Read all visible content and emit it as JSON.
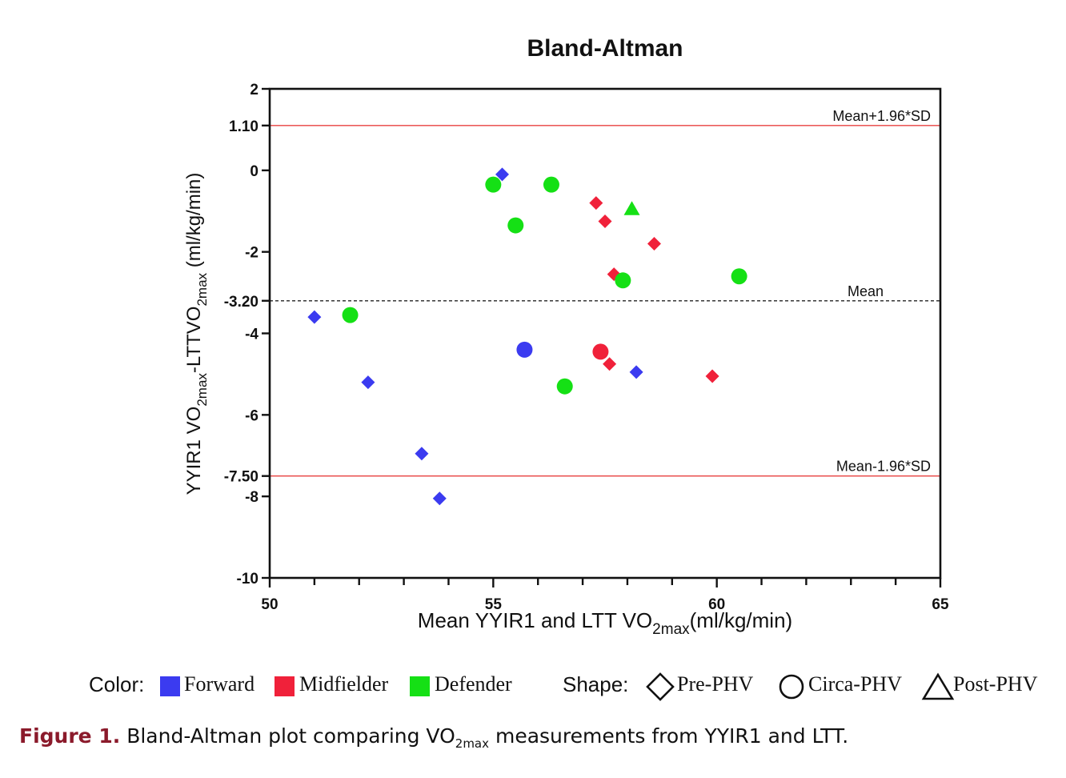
{
  "chart_data": {
    "type": "scatter",
    "title": "Bland-Altman",
    "xlabel": {
      "pre": "Mean YYIR1 and LTT VO",
      "sub": "2max",
      "post": "(ml/kg/min)"
    },
    "ylabel": {
      "a": "YYIR1 VO",
      "sub1": "2max",
      "b": "-LTTVO",
      "sub2": "2max",
      "c": " (ml/kg/min)"
    },
    "xlim": [
      50,
      65
    ],
    "ylim": [
      -10,
      2
    ],
    "x_ticks": [
      50,
      55,
      60,
      65
    ],
    "y_ticks": [
      {
        "value": 2,
        "label": "2"
      },
      {
        "value": 1.1,
        "label": "1.10"
      },
      {
        "value": 0,
        "label": "0"
      },
      {
        "value": -2,
        "label": "-2"
      },
      {
        "value": -3.2,
        "label": "-3.20"
      },
      {
        "value": -4,
        "label": "-4"
      },
      {
        "value": -6,
        "label": "-6"
      },
      {
        "value": -7.5,
        "label": "-7.50"
      },
      {
        "value": -8,
        "label": "-8"
      },
      {
        "value": -10,
        "label": "-10"
      }
    ],
    "reference_lines": [
      {
        "name": "upper-loa",
        "value": 1.1,
        "label": "Mean+1.96*SD",
        "color": "#e8413f",
        "style": "solid"
      },
      {
        "name": "mean",
        "value": -3.2,
        "label": "Mean",
        "color": "#222222",
        "style": "dashed"
      },
      {
        "name": "lower-loa",
        "value": -7.5,
        "label": "Mean-1.96*SD",
        "color": "#e8413f",
        "style": "solid"
      }
    ],
    "colors": {
      "Forward": "#3b3bf0",
      "Midfielder": "#f0213a",
      "Defender": "#15e015"
    },
    "points": [
      {
        "x": 55.2,
        "y": -0.1,
        "group": "Forward",
        "shape": "diamond"
      },
      {
        "x": 51.0,
        "y": -3.6,
        "group": "Forward",
        "shape": "diamond"
      },
      {
        "x": 52.2,
        "y": -5.2,
        "group": "Forward",
        "shape": "diamond"
      },
      {
        "x": 53.4,
        "y": -6.95,
        "group": "Forward",
        "shape": "diamond"
      },
      {
        "x": 53.8,
        "y": -8.05,
        "group": "Forward",
        "shape": "diamond"
      },
      {
        "x": 58.2,
        "y": -4.95,
        "group": "Forward",
        "shape": "diamond"
      },
      {
        "x": 55.7,
        "y": -4.4,
        "group": "Forward",
        "shape": "circle"
      },
      {
        "x": 57.3,
        "y": -0.8,
        "group": "Midfielder",
        "shape": "diamond"
      },
      {
        "x": 57.5,
        "y": -1.25,
        "group": "Midfielder",
        "shape": "diamond"
      },
      {
        "x": 58.6,
        "y": -1.8,
        "group": "Midfielder",
        "shape": "diamond"
      },
      {
        "x": 57.7,
        "y": -2.55,
        "group": "Midfielder",
        "shape": "diamond"
      },
      {
        "x": 57.6,
        "y": -4.75,
        "group": "Midfielder",
        "shape": "diamond"
      },
      {
        "x": 59.9,
        "y": -5.05,
        "group": "Midfielder",
        "shape": "diamond"
      },
      {
        "x": 57.4,
        "y": -4.45,
        "group": "Midfielder",
        "shape": "circle"
      },
      {
        "x": 55.0,
        "y": -0.35,
        "group": "Defender",
        "shape": "circle"
      },
      {
        "x": 56.3,
        "y": -0.35,
        "group": "Defender",
        "shape": "circle"
      },
      {
        "x": 55.5,
        "y": -1.35,
        "group": "Defender",
        "shape": "circle"
      },
      {
        "x": 57.9,
        "y": -2.7,
        "group": "Defender",
        "shape": "circle"
      },
      {
        "x": 60.5,
        "y": -2.6,
        "group": "Defender",
        "shape": "circle"
      },
      {
        "x": 51.8,
        "y": -3.55,
        "group": "Defender",
        "shape": "circle"
      },
      {
        "x": 56.6,
        "y": -5.3,
        "group": "Defender",
        "shape": "circle"
      },
      {
        "x": 58.1,
        "y": -0.95,
        "group": "Defender",
        "shape": "triangle"
      }
    ]
  },
  "legend": {
    "color_label": "Color:",
    "shape_label": "Shape:",
    "groups": [
      {
        "name": "Forward",
        "color": "#3b3bf0"
      },
      {
        "name": "Midfielder",
        "color": "#f0213a"
      },
      {
        "name": "Defender",
        "color": "#15e015"
      }
    ],
    "shapes": [
      {
        "name": "Pre-PHV",
        "icon": "diamond-outline"
      },
      {
        "name": "Circa-PHV",
        "icon": "circle-outline"
      },
      {
        "name": "Post-PHV",
        "icon": "triangle-outline"
      }
    ]
  },
  "caption": {
    "figure_label": "Figure 1.",
    "text_pre": "Bland-Altman plot comparing VO",
    "text_sub": "2max",
    "text_post": " measurements from YYIR1 and LTT."
  }
}
